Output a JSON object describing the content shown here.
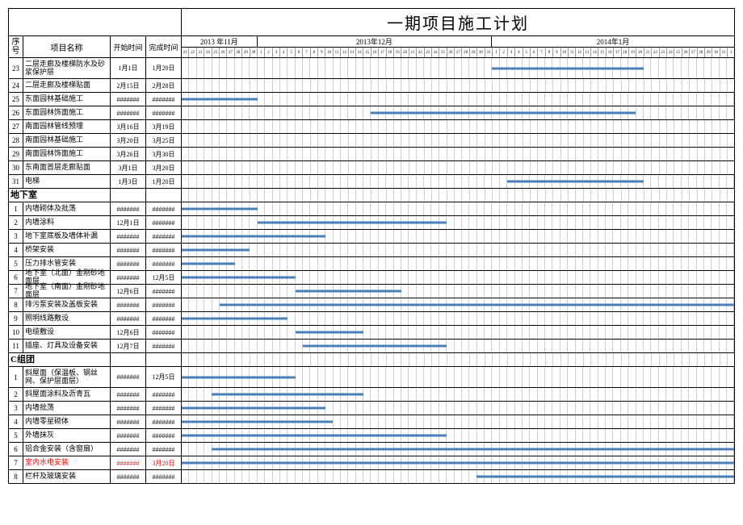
{
  "title": "一期项目施工计划",
  "headers": {
    "seq": "序号",
    "name": "项目名称",
    "start": "开始时间",
    "end": "完成时间"
  },
  "timeline": {
    "total_days": 73,
    "months": [
      {
        "label": "2013 年11月",
        "days": 10
      },
      {
        "label": "2013年12月",
        "days": 31
      },
      {
        "label": "2014年1月",
        "days": 32
      }
    ],
    "day_labels": [
      21,
      22,
      23,
      24,
      25,
      26,
      27,
      28,
      29,
      30,
      1,
      2,
      3,
      4,
      5,
      6,
      7,
      8,
      9,
      10,
      11,
      12,
      13,
      14,
      15,
      16,
      17,
      18,
      19,
      20,
      21,
      22,
      23,
      24,
      25,
      26,
      27,
      28,
      29,
      30,
      31,
      1,
      2,
      3,
      4,
      5,
      6,
      7,
      8,
      9,
      10,
      11,
      12,
      13,
      14,
      15,
      16,
      17,
      18,
      19,
      20,
      21,
      22,
      23,
      24,
      25,
      26,
      27,
      28,
      29,
      30,
      31,
      1
    ]
  },
  "colors": {
    "bar": "#4a7ebb",
    "grid": "#cccccc",
    "border": "#000000",
    "background": "#ffffff",
    "highlight_text": "#ff0000"
  },
  "rows": [
    {
      "seq": "23",
      "name": "二层走廊及楼梯防水及砂浆保护层",
      "start": "1月1日",
      "end": "1月20日",
      "tall": true,
      "bars": [
        [
          41,
          61
        ]
      ]
    },
    {
      "seq": "24",
      "name": "二层走廊及楼梯贴面",
      "start": "2月15日",
      "end": "2月28日",
      "bars": []
    },
    {
      "seq": "25",
      "name": "东面园林基础施工",
      "start": "#######",
      "end": "#######",
      "bars": [
        [
          0,
          10
        ]
      ]
    },
    {
      "seq": "26",
      "name": "东面园林饰面施工",
      "start": "#######",
      "end": "#######",
      "bars": [
        [
          25,
          60
        ]
      ]
    },
    {
      "seq": "27",
      "name": "南面园林管线预埋",
      "start": "3月16日",
      "end": "3月19日",
      "bars": []
    },
    {
      "seq": "28",
      "name": "南面园林基础施工",
      "start": "3月20日",
      "end": "3月25日",
      "bars": []
    },
    {
      "seq": "29",
      "name": "南面园林饰面施工",
      "start": "3月26日",
      "end": "3月30日",
      "bars": []
    },
    {
      "seq": "30",
      "name": "东南面首层走廊贴面",
      "start": "3月1日",
      "end": "3月20日",
      "bars": []
    },
    {
      "seq": "31",
      "name": "电梯",
      "start": "1月3日",
      "end": "1月20日",
      "bars": [
        [
          43,
          61
        ]
      ]
    },
    {
      "section": true,
      "name": "地下室"
    },
    {
      "seq": "1",
      "name": "内墙砌体及批荡",
      "start": "#######",
      "end": "#######",
      "bars": [
        [
          0,
          10
        ]
      ]
    },
    {
      "seq": "2",
      "name": "内墙涂料",
      "start": "12月1日",
      "end": "#######",
      "bars": [
        [
          10,
          35
        ]
      ]
    },
    {
      "seq": "3",
      "name": "地下室底板及墙体补漏",
      "start": "#######",
      "end": "#######",
      "bars": [
        [
          0,
          19
        ]
      ]
    },
    {
      "seq": "4",
      "name": "桥架安装",
      "start": "#######",
      "end": "#######",
      "bars": [
        [
          0,
          9
        ]
      ]
    },
    {
      "seq": "5",
      "name": "压力排水管安装",
      "start": "#######",
      "end": "#######",
      "bars": [
        [
          0,
          7
        ]
      ]
    },
    {
      "seq": "6",
      "name": "地下室（北面）金刚砂地面层",
      "start": "#######",
      "end": "12月5日",
      "bars": [
        [
          0,
          15
        ]
      ]
    },
    {
      "seq": "7",
      "name": "地下室（南面）金刚砂地面层",
      "start": "12月6日",
      "end": "#######",
      "bars": [
        [
          15,
          29
        ]
      ]
    },
    {
      "seq": "8",
      "name": "排污泵安装及盖板安装",
      "start": "#######",
      "end": "#######",
      "bars": [
        [
          5,
          73
        ]
      ]
    },
    {
      "seq": "9",
      "name": "照明线路敷设",
      "start": "#######",
      "end": "#######",
      "bars": [
        [
          0,
          14
        ]
      ]
    },
    {
      "seq": "10",
      "name": "电缆敷设",
      "start": "12月6日",
      "end": "#######",
      "bars": [
        [
          15,
          24
        ]
      ]
    },
    {
      "seq": "11",
      "name": "插座、灯具及设备安装",
      "start": "12月7日",
      "end": "#######",
      "bars": [
        [
          16,
          35
        ]
      ]
    },
    {
      "section": true,
      "name": "C组团"
    },
    {
      "seq": "1",
      "name": "斜屋面（保温板、钢丝网、保护层面层）",
      "start": "#######",
      "end": "12月5日",
      "tall": true,
      "bars": [
        [
          0,
          15
        ]
      ]
    },
    {
      "seq": "2",
      "name": "斜屋面涂料及沥青瓦",
      "start": "#######",
      "end": "#######",
      "bars": [
        [
          4,
          24
        ]
      ]
    },
    {
      "seq": "3",
      "name": "内墙批荡",
      "start": "#######",
      "end": "#######",
      "bars": [
        [
          0,
          19
        ]
      ]
    },
    {
      "seq": "4",
      "name": "内墙零星砌体",
      "start": "#######",
      "end": "#######",
      "bars": [
        [
          0,
          20
        ]
      ]
    },
    {
      "seq": "5",
      "name": "外墙抹灰",
      "start": "#######",
      "end": "#######",
      "bars": [
        [
          0,
          35
        ]
      ]
    },
    {
      "seq": "6",
      "name": "铝合金安装（含窗扇）",
      "start": "#######",
      "end": "#######",
      "bars": [
        [
          4,
          73
        ]
      ]
    },
    {
      "seq": "7",
      "name": "室内水电安装",
      "start": "#######",
      "end": "3月20日",
      "red": true,
      "bars": [
        [
          0,
          73
        ]
      ]
    },
    {
      "seq": "8",
      "name": "栏杆及玻璃安装",
      "start": "#######",
      "end": "#######",
      "bars": [
        [
          39,
          73
        ]
      ]
    }
  ]
}
